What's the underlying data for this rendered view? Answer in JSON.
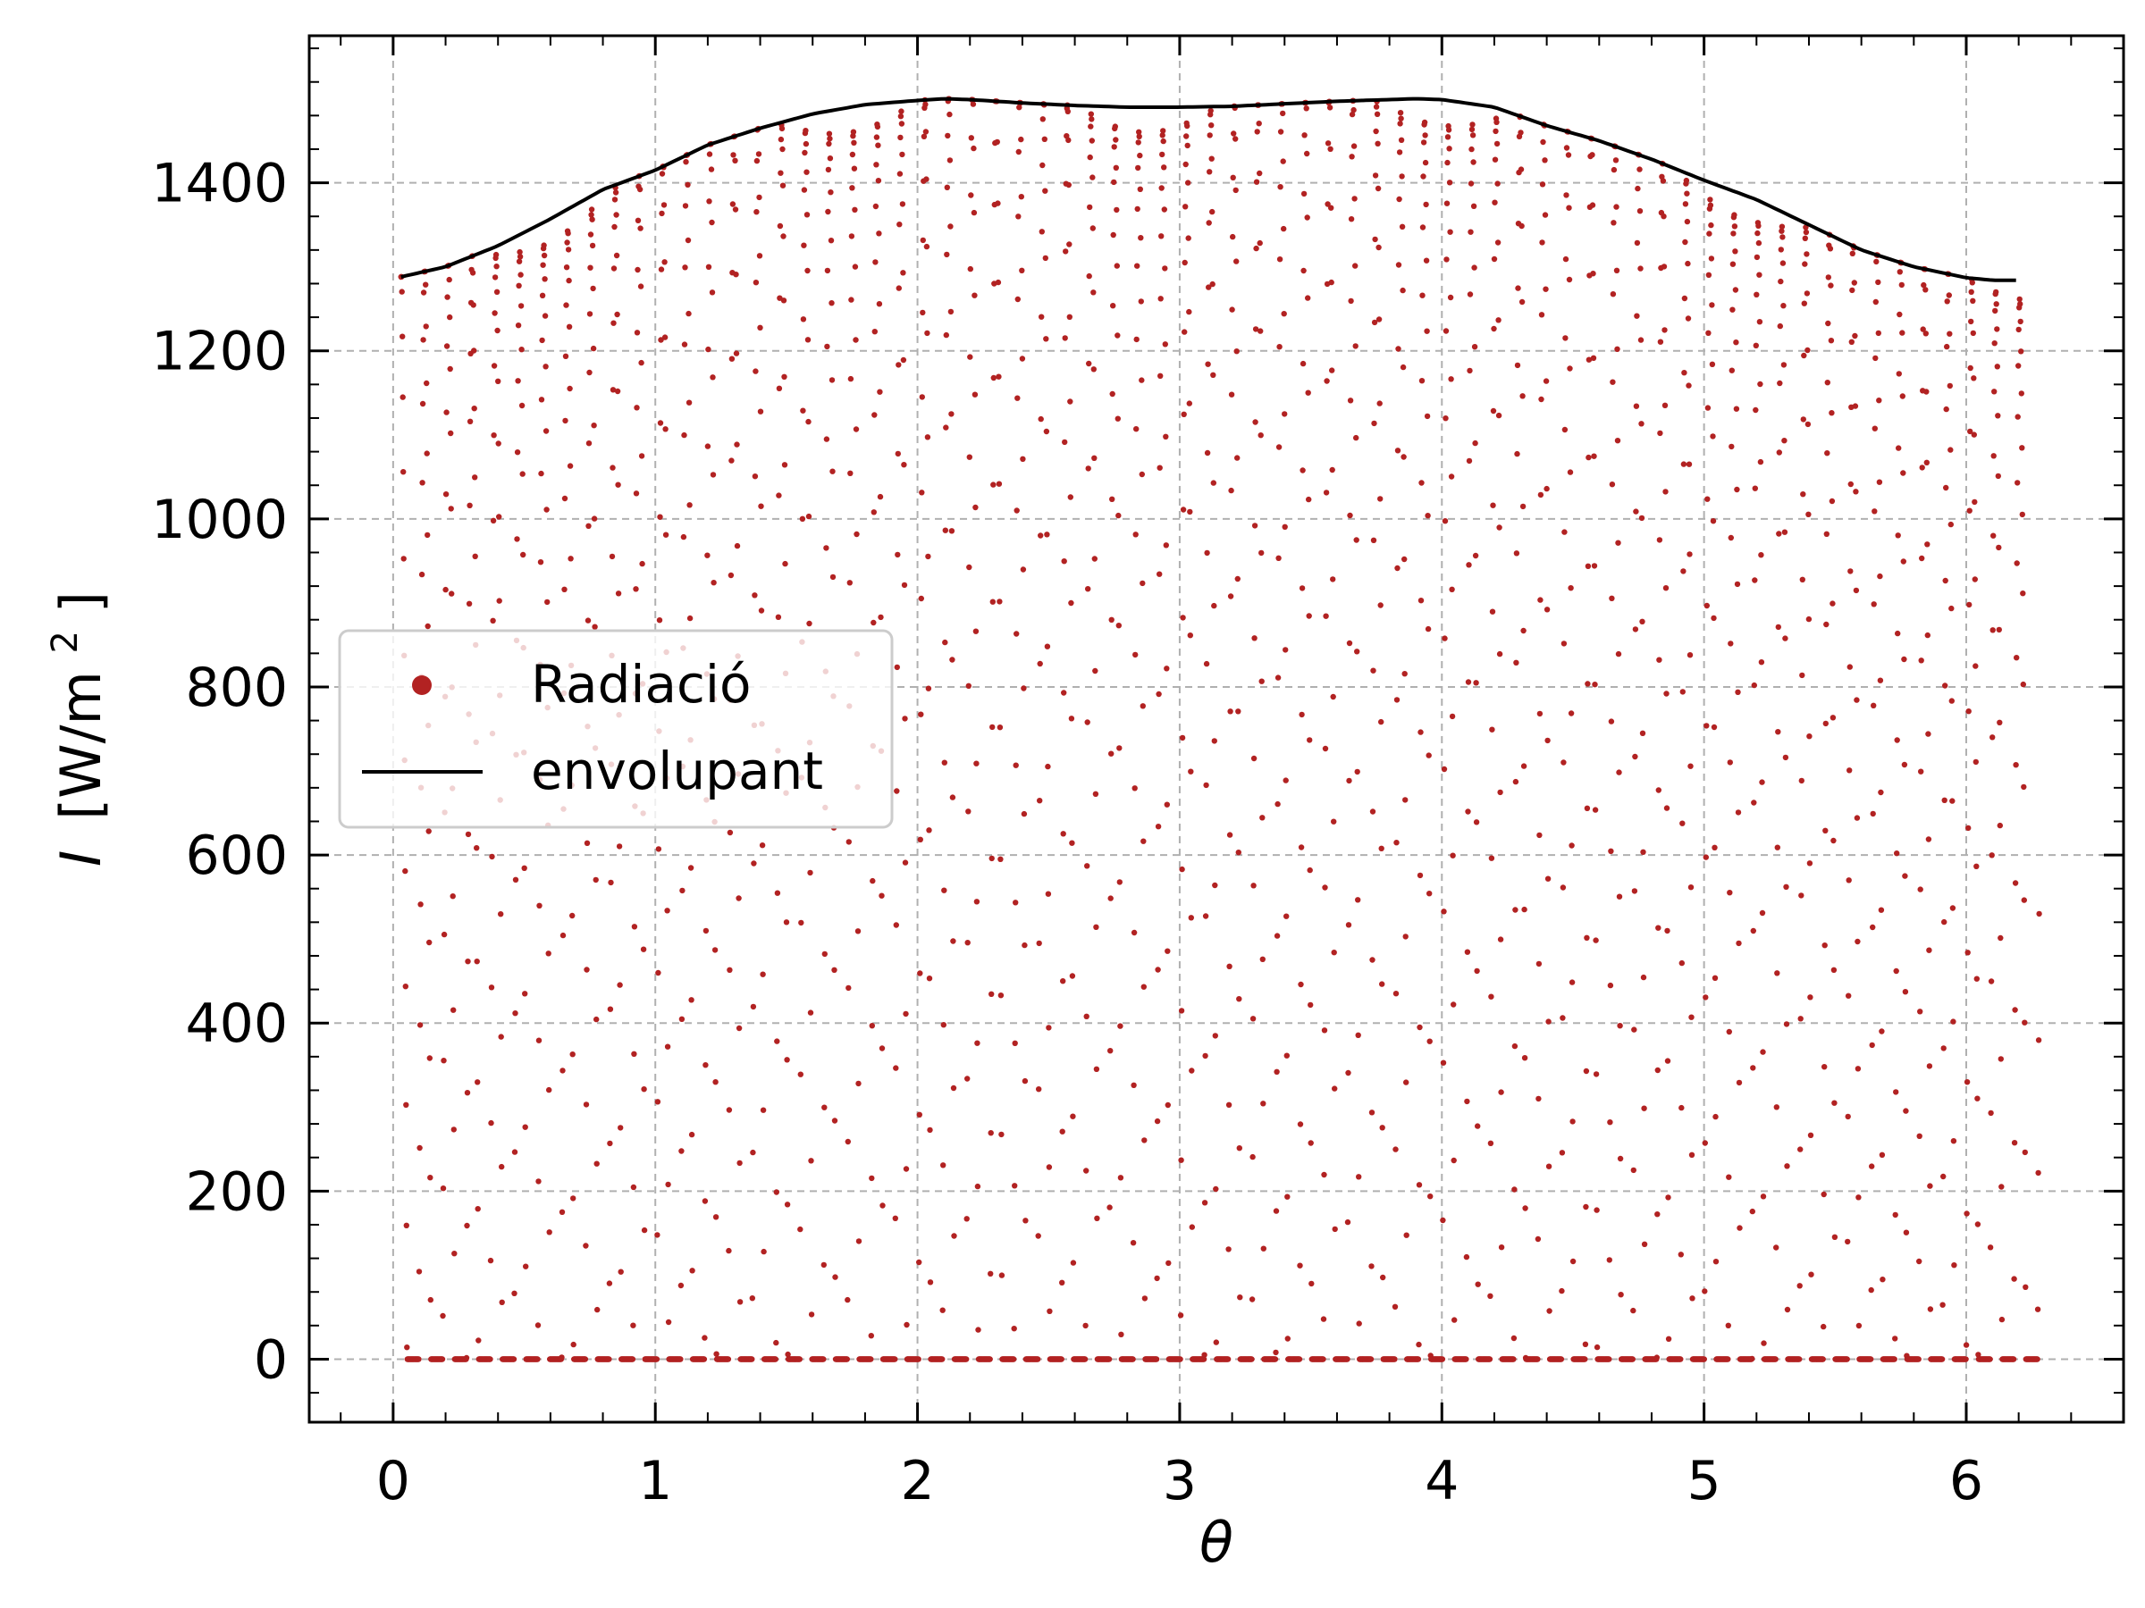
{
  "chart_data": {
    "type": "scatter",
    "title": "",
    "xlabel": "θ",
    "ylabel_italic": "I",
    "ylabel_units": "[W/m",
    "ylabel_sup": "2",
    "ylabel_close": "]",
    "xlim": [
      -0.32,
      6.6
    ],
    "ylim": [
      -75,
      1575
    ],
    "x_ticks": [
      "0",
      "1",
      "2",
      "3",
      "4",
      "5",
      "6"
    ],
    "y_ticks": [
      "0",
      "200",
      "400",
      "600",
      "800",
      "1000",
      "1200",
      "1400"
    ],
    "grid": true,
    "grid_style": "dashed",
    "legend_position": "center-left",
    "series": [
      {
        "name": "Radiació",
        "kind": "scatter",
        "color": "#b22222",
        "description_values": "intensity samples I(θ) ranging from 0 to envelope for θ in [0.03, 6.28]"
      },
      {
        "name": "envolupant",
        "kind": "line",
        "color": "#000000",
        "x": [
          0.03,
          0.2,
          0.4,
          0.6,
          0.8,
          1.0,
          1.2,
          1.4,
          1.6,
          1.8,
          2.0,
          2.1,
          2.2,
          2.4,
          2.6,
          2.8,
          3.0,
          3.2,
          3.4,
          3.6,
          3.8,
          3.9,
          4.0,
          4.2,
          4.4,
          4.6,
          4.8,
          5.0,
          5.2,
          5.4,
          5.6,
          5.8,
          6.0,
          6.1,
          6.2
        ],
        "y": [
          1288,
          1300,
          1325,
          1357,
          1392,
          1415,
          1445,
          1465,
          1482,
          1493,
          1498,
          1500,
          1499,
          1495,
          1492,
          1490,
          1490,
          1491,
          1494,
          1497,
          1499,
          1500,
          1499,
          1490,
          1468,
          1450,
          1428,
          1403,
          1380,
          1350,
          1320,
          1300,
          1287,
          1284,
          1284
        ]
      }
    ]
  }
}
